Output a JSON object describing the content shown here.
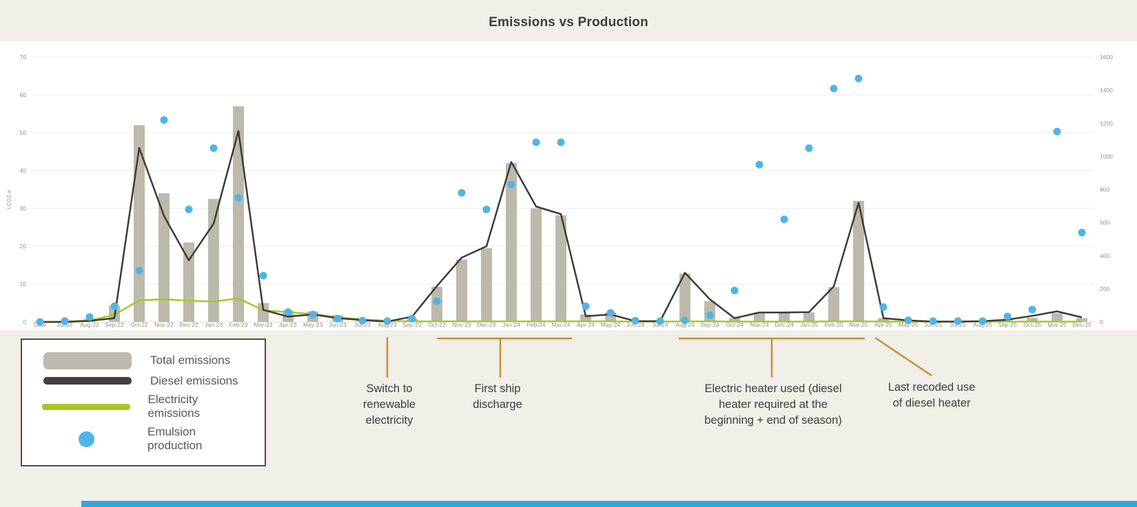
{
  "title": "Emissions vs Production",
  "chart_data": {
    "type": "combo",
    "title": "Emissions vs Production",
    "categories": [
      "Date",
      "Jul-22",
      "Aug-22",
      "Sep-22",
      "Oct-22",
      "Nov-22",
      "Dec-22",
      "Jan-23",
      "Feb-23",
      "Mar-23",
      "Apr-23",
      "May-23",
      "Jun-23",
      "Jul-23",
      "Aug-23",
      "Sep-23",
      "Oct-23",
      "Nov-23",
      "Dec-23",
      "Jan-24",
      "Feb-24",
      "Mar-24",
      "Apr-24",
      "May-24",
      "Jun-24",
      "Jul-24",
      "Aug-24",
      "Sep-24",
      "Oct-24",
      "Nov-24",
      "Dec-24",
      "Jan-25",
      "Feb-25",
      "Mar-25",
      "Apr-25",
      "May-25",
      "Jun-25",
      "Jul-25",
      "Aug-25",
      "Sep-25",
      "Oct-25",
      "Nov-25",
      "Dec-25"
    ],
    "series": [
      {
        "name": "Total emissions",
        "type": "bar",
        "axis": "left",
        "color": "#bcbaab",
        "values": [
          0,
          0,
          0.8,
          4.3,
          52,
          34,
          21,
          32.5,
          57,
          5,
          3,
          2.8,
          1.8,
          0.8,
          0.3,
          0.8,
          9.3,
          16.5,
          19.5,
          42,
          30,
          28.2,
          2,
          2.5,
          0,
          0,
          12.8,
          5.5,
          1,
          2.5,
          2.5,
          2.5,
          9.2,
          32,
          1,
          0.5,
          0,
          0,
          0,
          0.5,
          1.1,
          2.3,
          1
        ]
      },
      {
        "name": "Diesel emissions",
        "type": "line",
        "axis": "left",
        "color": "#3e3a39",
        "values": [
          0,
          0,
          0.3,
          1,
          46,
          28,
          16.3,
          26,
          50.5,
          3.2,
          1.4,
          2,
          1,
          0.5,
          0.1,
          1.4,
          9.5,
          17,
          20,
          42.3,
          30.5,
          28.5,
          1.5,
          2,
          0.2,
          0.2,
          13,
          6,
          1,
          2.5,
          2.5,
          2.6,
          9.4,
          31.5,
          1,
          0.4,
          0.1,
          0.1,
          0.2,
          0.6,
          1.6,
          2.8,
          1.2
        ]
      },
      {
        "name": "Electricity emissions",
        "type": "line",
        "axis": "left",
        "color": "#a8c725",
        "values": [
          0,
          0.1,
          0.4,
          1.9,
          5.7,
          6,
          5.6,
          5.4,
          6.2,
          3.1,
          2.6,
          2.1,
          1.2,
          0.7,
          0.3,
          0.15,
          0.15,
          0.15,
          0.15,
          0.15,
          0.15,
          0.15,
          0.15,
          0.15,
          0.1,
          0.1,
          0.15,
          0.15,
          0.1,
          0.1,
          0.1,
          0.1,
          0.15,
          0.15,
          0.1,
          0.1,
          0.1,
          0.1,
          0.1,
          0.1,
          0.1,
          0.1,
          0.1
        ]
      },
      {
        "name": "Emulsion production",
        "type": "scatter",
        "axis": "right",
        "color": "#4db5e8",
        "values": [
          0,
          5,
          30,
          95,
          310,
          1220,
          680,
          1050,
          750,
          280,
          60,
          45,
          20,
          8,
          5,
          20,
          125,
          780,
          680,
          830,
          1085,
          1085,
          95,
          55,
          8,
          5,
          10,
          40,
          190,
          950,
          620,
          1050,
          1410,
          1470,
          90,
          10,
          5,
          5,
          5,
          33,
          75,
          1150,
          540
        ]
      }
    ],
    "left_axis": {
      "title": "t CO2-e",
      "min": 0,
      "max": 70,
      "ticks": [
        0,
        10,
        20,
        30,
        40,
        50,
        60,
        70
      ]
    },
    "right_axis": {
      "min": 0,
      "max": 1600,
      "ticks": [
        0,
        200,
        400,
        600,
        800,
        1000,
        1200,
        1400,
        1600
      ]
    },
    "grid": true,
    "legend_position": "bottom-left"
  },
  "legend": {
    "items": [
      {
        "label": "Total emissions",
        "color": "#bcbaab",
        "marker": "bar-swatch"
      },
      {
        "label": "Diesel emissions",
        "color": "#453f3f",
        "marker": "line-swatch"
      },
      {
        "label": "Electricity emissions",
        "color": "#a8c725",
        "marker": "line-swatch"
      },
      {
        "label": "Emulsion production",
        "color": "#4db5e8",
        "marker": "circle-swatch"
      }
    ]
  },
  "annotations": [
    {
      "text": "Switch to renewable electricity",
      "anchor": "Aug-23",
      "connector": "vertical-line"
    },
    {
      "text": "First ship discharge",
      "anchor": "Oct-23 to Mar-24",
      "connector": "bracket"
    },
    {
      "text": "Electric heater used (diesel heater required at the beginning + end of season)",
      "anchor": "Aug-24 to Mar-25",
      "connector": "bracket"
    },
    {
      "text": "Last recoded use of diesel heater",
      "anchor": "Apr-25",
      "connector": "diagonal-line"
    }
  ],
  "colors": {
    "background": "#f0efe8",
    "chart_background": "#ffffff",
    "gridline": "#ebebeb",
    "axis_text": "#8f8f88",
    "annotation_connector": "#c78f35",
    "annotation_text": "#3b3b3b",
    "bottom_strip": "#2da8de"
  }
}
